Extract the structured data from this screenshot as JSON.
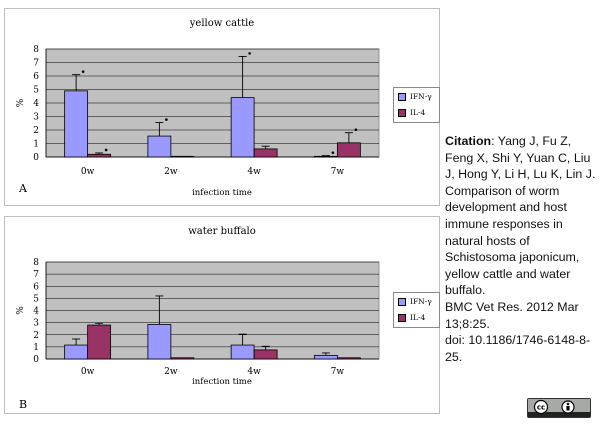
{
  "colors": {
    "ifn": "#9999ff",
    "il4": "#993366",
    "plot_bg": "#c0c0c0",
    "grid": "#000000"
  },
  "chart_data": [
    {
      "type": "bar",
      "panel_letter": "A",
      "title": "yellow cattle",
      "xlabel": "infection time",
      "ylabel": "%",
      "ylim": [
        0,
        8
      ],
      "yticks": [
        0,
        1,
        2,
        3,
        4,
        5,
        6,
        7,
        8
      ],
      "grid": true,
      "legend_position": "right",
      "categories": [
        "0w",
        "2w",
        "4w",
        "7w"
      ],
      "series": [
        {
          "name": "IFN-γ",
          "values": [
            4.9,
            1.55,
            4.4,
            0.05
          ],
          "error": [
            1.2,
            1.0,
            3.05,
            0.05
          ],
          "significant": [
            true,
            true,
            true,
            true
          ]
        },
        {
          "name": "IL-4",
          "values": [
            0.2,
            0.05,
            0.6,
            1.05
          ],
          "error": [
            0.1,
            0.0,
            0.2,
            0.75
          ],
          "significant": [
            true,
            false,
            false,
            true
          ]
        }
      ]
    },
    {
      "type": "bar",
      "panel_letter": "B",
      "title": "water buffalo",
      "xlabel": "infection time",
      "ylabel": "%",
      "ylim": [
        0,
        8
      ],
      "yticks": [
        0,
        1,
        2,
        3,
        4,
        5,
        6,
        7,
        8
      ],
      "grid": true,
      "legend_position": "right",
      "categories": [
        "0w",
        "2w",
        "4w",
        "7w"
      ],
      "series": [
        {
          "name": "IFN-γ",
          "values": [
            1.15,
            2.85,
            1.15,
            0.3
          ],
          "error": [
            0.5,
            2.35,
            0.9,
            0.2
          ],
          "significant": [
            false,
            false,
            false,
            false
          ]
        },
        {
          "name": "IL-4",
          "values": [
            2.8,
            0.1,
            0.75,
            0.1
          ],
          "error": [
            0.15,
            0.0,
            0.3,
            0.0
          ],
          "significant": [
            false,
            false,
            false,
            false
          ]
        }
      ]
    }
  ],
  "citation": {
    "label": "Citation",
    "authors": ": Yang J, Fu Z, Feng X, Shi Y, Yuan C, Liu J, Hong Y, Li H, Lu K, Lin J.",
    "title": "Comparison of worm development and host immune responses in natural hosts of Schistosoma japonicum, yellow cattle and water buffalo.",
    "journal": "BMC Vet Res. 2012 Mar 13;8:25.",
    "doi": "doi: 10.1186/1746-6148-8-25."
  },
  "license_badge": {
    "text": "cc",
    "icon": "cc-by-license-icon"
  }
}
